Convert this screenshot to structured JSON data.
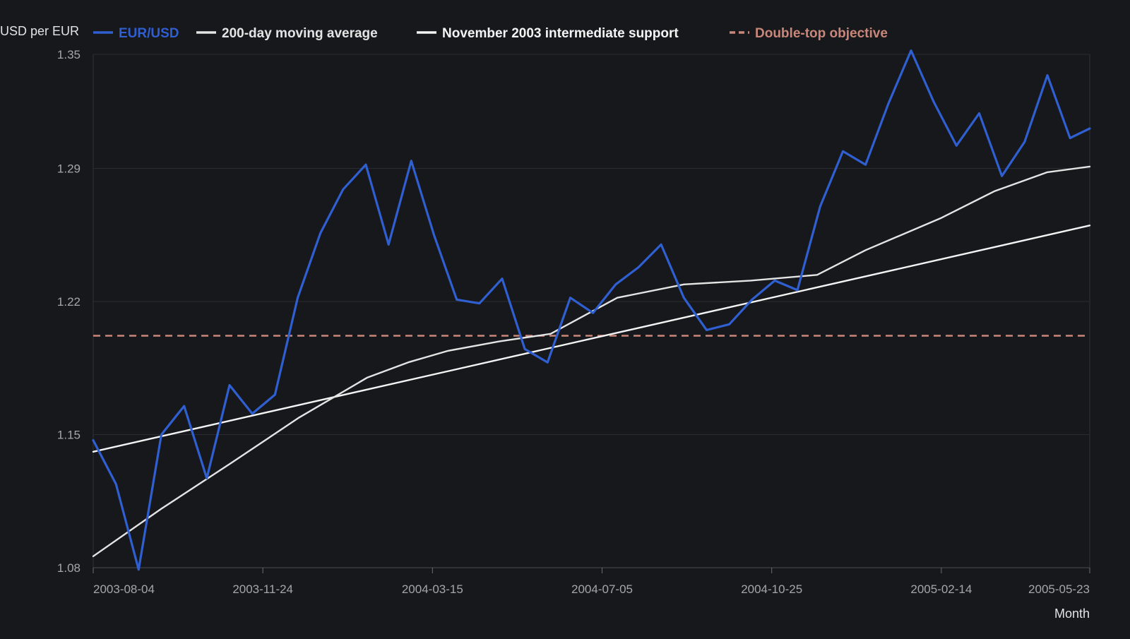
{
  "chart_data": {
    "type": "line",
    "ylabel": "USD per EUR",
    "xlabel": "Month",
    "ylim": [
      1.08,
      1.35
    ],
    "yticks": [
      "1.08",
      "1.15",
      "1.22",
      "1.29",
      "1.35"
    ],
    "x_range": [
      "2003-08-04",
      "2005-05-23"
    ],
    "xticks": [
      "2003-08-04",
      "2003-11-24",
      "2004-03-15",
      "2004-07-05",
      "2004-10-25",
      "2005-02-14",
      "2005-05-23"
    ],
    "grid": "horizontal",
    "legend_position": "top",
    "series": [
      {
        "name": "EUR/USD",
        "color": "#2f5fd0",
        "style": "solid",
        "x": [
          "2003-08-04",
          "2003-08-19",
          "2003-09-03",
          "2003-09-18",
          "2003-10-03",
          "2003-10-18",
          "2003-11-02",
          "2003-11-17",
          "2003-12-02",
          "2003-12-17",
          "2004-01-01",
          "2004-01-16",
          "2004-01-31",
          "2004-02-15",
          "2004-03-01",
          "2004-03-16",
          "2004-03-31",
          "2004-04-15",
          "2004-04-30",
          "2004-05-15",
          "2004-05-30",
          "2004-06-14",
          "2004-06-29",
          "2004-07-14",
          "2004-07-29",
          "2004-08-13",
          "2004-08-28",
          "2004-09-12",
          "2004-09-27",
          "2004-10-12",
          "2004-10-27",
          "2004-11-11",
          "2004-11-26",
          "2004-12-11",
          "2004-12-26",
          "2005-01-10",
          "2005-01-25",
          "2005-02-09",
          "2005-02-24",
          "2005-03-11",
          "2005-03-26",
          "2005-04-10",
          "2005-04-25",
          "2005-05-10",
          "2005-05-23"
        ],
        "values": [
          1.147,
          1.124,
          1.079,
          1.15,
          1.165,
          1.127,
          1.176,
          1.161,
          1.171,
          1.222,
          1.256,
          1.279,
          1.292,
          1.25,
          1.294,
          1.255,
          1.221,
          1.219,
          1.232,
          1.195,
          1.188,
          1.222,
          1.214,
          1.229,
          1.238,
          1.25,
          1.222,
          1.205,
          1.208,
          1.221,
          1.231,
          1.226,
          1.27,
          1.299,
          1.292,
          1.324,
          1.352,
          1.325,
          1.302,
          1.319,
          1.286,
          1.304,
          1.339,
          1.306,
          1.311
        ]
      },
      {
        "name": "200-day moving average",
        "color": "#e4e4e4",
        "style": "solid",
        "x": [
          "2003-08-04",
          "2003-09-18",
          "2003-11-03",
          "2003-12-18",
          "2004-02-01",
          "2004-02-28",
          "2004-03-25",
          "2004-04-28",
          "2004-06-01",
          "2004-07-15",
          "2004-08-28",
          "2004-10-11",
          "2004-11-24",
          "2004-12-26",
          "2005-02-14",
          "2005-03-21",
          "2005-04-25",
          "2005-05-23"
        ],
        "values": [
          1.086,
          1.111,
          1.135,
          1.159,
          1.18,
          1.188,
          1.194,
          1.199,
          1.203,
          1.222,
          1.229,
          1.231,
          1.234,
          1.247,
          1.264,
          1.278,
          1.288,
          1.291
        ]
      },
      {
        "name": "November 2003 intermediate support",
        "color": "#f4f4f4",
        "style": "solid",
        "x": [
          "2003-08-04",
          "2005-05-23"
        ],
        "values": [
          1.141,
          1.26
        ]
      },
      {
        "name": "Double-top objective",
        "color": "#c9877b",
        "style": "dashed",
        "x": [
          "2003-08-04",
          "2005-05-23"
        ],
        "values": [
          1.202,
          1.202
        ]
      }
    ]
  }
}
